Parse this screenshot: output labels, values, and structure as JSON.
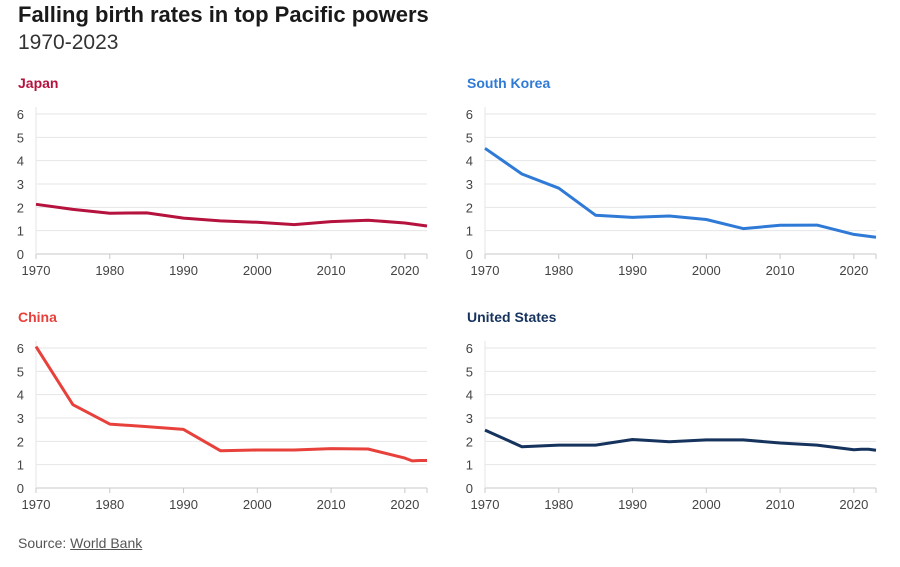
{
  "header": {
    "title": "Falling birth rates in top Pacific powers",
    "subtitle": "1970-2023"
  },
  "source": {
    "prefix": "Source: ",
    "link_text": "World Bank"
  },
  "chart_data": [
    {
      "type": "line",
      "title": "Japan",
      "color": "#b5123e",
      "x": [
        1970,
        1975,
        1980,
        1985,
        1990,
        1995,
        2000,
        2005,
        2010,
        2015,
        2020,
        2023
      ],
      "values": [
        2.13,
        1.91,
        1.75,
        1.76,
        1.54,
        1.42,
        1.36,
        1.26,
        1.39,
        1.45,
        1.33,
        1.2
      ],
      "xticks": [
        1970,
        1980,
        1990,
        2000,
        2010,
        2020
      ],
      "yticks": [
        0,
        1,
        2,
        3,
        4,
        5,
        6
      ],
      "xlim": [
        1970,
        2023
      ],
      "ylim": [
        0,
        6.3
      ],
      "grid": true
    },
    {
      "type": "line",
      "title": "South Korea",
      "color": "#2f7ad6",
      "x": [
        1970,
        1975,
        1980,
        1985,
        1990,
        1995,
        2000,
        2005,
        2010,
        2015,
        2020,
        2023
      ],
      "values": [
        4.53,
        3.43,
        2.82,
        1.66,
        1.57,
        1.63,
        1.48,
        1.09,
        1.23,
        1.24,
        0.84,
        0.72
      ],
      "xticks": [
        1970,
        1980,
        1990,
        2000,
        2010,
        2020
      ],
      "yticks": [
        0,
        1,
        2,
        3,
        4,
        5,
        6
      ],
      "xlim": [
        1970,
        2023
      ],
      "ylim": [
        0,
        6.3
      ],
      "grid": true
    },
    {
      "type": "line",
      "title": "China",
      "color": "#e8413b",
      "x": [
        1970,
        1975,
        1980,
        1985,
        1990,
        1995,
        2000,
        2005,
        2010,
        2015,
        2020,
        2021,
        2022,
        2023
      ],
      "values": [
        6.06,
        3.57,
        2.74,
        2.63,
        2.51,
        1.6,
        1.63,
        1.63,
        1.69,
        1.67,
        1.28,
        1.16,
        1.18,
        1.18
      ],
      "xticks": [
        1970,
        1980,
        1990,
        2000,
        2010,
        2020
      ],
      "yticks": [
        0,
        1,
        2,
        3,
        4,
        5,
        6
      ],
      "xlim": [
        1970,
        2023
      ],
      "ylim": [
        0,
        6.3
      ],
      "grid": true
    },
    {
      "type": "line",
      "title": "United States",
      "color": "#16335e",
      "x": [
        1970,
        1975,
        1980,
        1985,
        1990,
        1995,
        2000,
        2005,
        2010,
        2015,
        2020,
        2021,
        2022,
        2023
      ],
      "values": [
        2.48,
        1.77,
        1.84,
        1.84,
        2.08,
        1.98,
        2.06,
        2.06,
        1.93,
        1.84,
        1.64,
        1.66,
        1.66,
        1.62
      ],
      "xticks": [
        1970,
        1980,
        1990,
        2000,
        2010,
        2020
      ],
      "yticks": [
        0,
        1,
        2,
        3,
        4,
        5,
        6
      ],
      "xlim": [
        1970,
        2023
      ],
      "ylim": [
        0,
        6.3
      ],
      "grid": true
    }
  ]
}
